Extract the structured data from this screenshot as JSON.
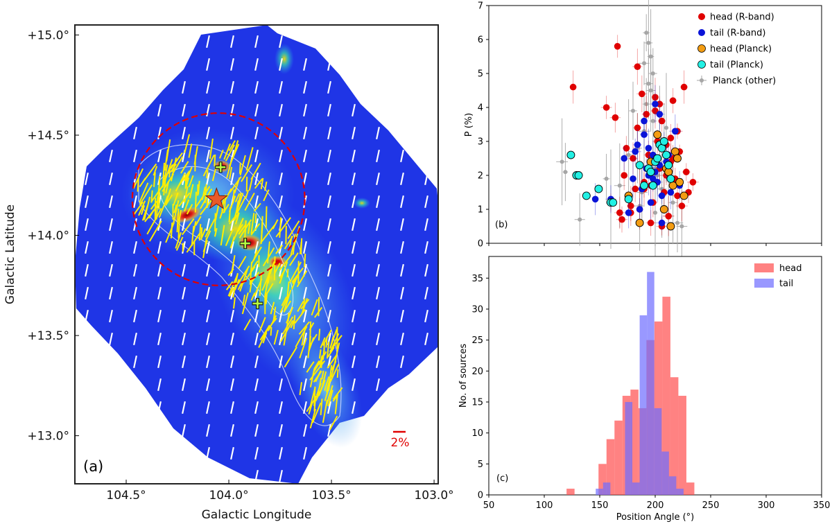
{
  "colors": {
    "head_rband": "#e00000",
    "tail_rband": "#0a14d8",
    "head_planck": "#f39c12",
    "tail_planck": "#22f0e4",
    "planck_other": "#a6a6a6",
    "hist_head": "#ff4d4d",
    "hist_tail": "#6e6cff",
    "map_bg": "#1f35e6",
    "vector_rband": "#ffee00",
    "vector_planck": "#ffffff",
    "scale_bar": "#e00000",
    "circle": "#e00000",
    "star": "#e85a2a"
  },
  "chart_data": [
    {
      "panel": "(a)",
      "type": "map",
      "xlabel": "Galactic Longitude",
      "ylabel": "Galactic Latitude",
      "xlim": [
        104.75,
        102.98
      ],
      "ylim": [
        12.76,
        15.05
      ],
      "x_ticks": [
        104.5,
        104.0,
        103.5,
        103.0
      ],
      "x_tick_labels": [
        "104.5°",
        "104.0°",
        "103.5°",
        "103.0°"
      ],
      "y_ticks": [
        15.0,
        14.5,
        14.0,
        13.5,
        13.0
      ],
      "y_tick_labels": [
        "+15.0°",
        "+14.5°",
        "+14.0°",
        "+13.5°",
        "+13.0°"
      ],
      "scale_bar_label": "2%",
      "star_position": [
        104.06,
        14.18
      ],
      "circle_center": [
        104.05,
        14.18
      ],
      "circle_radius_deg": 0.42,
      "plus_markers": [
        [
          104.04,
          14.34
        ],
        [
          103.92,
          13.96
        ],
        [
          103.86,
          13.66
        ]
      ],
      "planck_vector_angle_deg": 12,
      "rband_vector_angle_deg": 20
    },
    {
      "panel": "(b)",
      "type": "scatter",
      "xlabel": "",
      "ylabel": "P (%)",
      "xlim": [
        50,
        350
      ],
      "ylim": [
        0,
        7
      ],
      "y_ticks": [
        0,
        1,
        2,
        3,
        4,
        5,
        6,
        7
      ],
      "legend_position": "top-right",
      "series": [
        {
          "name": "head (R-band)",
          "color_key": "head_rband",
          "error_bars": true,
          "x": [
            126,
            156,
            166,
            170,
            172,
            176,
            178,
            180,
            182,
            184,
            186,
            188,
            190,
            192,
            194,
            196,
            198,
            200,
            202,
            204,
            206,
            208,
            210,
            212,
            214,
            216,
            218,
            220,
            222,
            224,
            226,
            228,
            230,
            234,
            160,
            164,
            168,
            174,
            186,
            196,
            206,
            214,
            220,
            184,
            200,
            210,
            190,
            204,
            216,
            178
          ],
          "y": [
            4.6,
            4.0,
            5.8,
            0.7,
            2.0,
            1.3,
            1.1,
            2.5,
            1.6,
            3.4,
            1.0,
            4.4,
            1.8,
            3.8,
            2.6,
            0.6,
            1.2,
            4.3,
            3.0,
            2.2,
            3.6,
            1.5,
            2.9,
            0.8,
            2.4,
            4.2,
            1.9,
            3.3,
            2.7,
            1.1,
            4.6,
            2.1,
            1.5,
            1.8,
            1.2,
            3.7,
            0.9,
            2.8,
            2.3,
            1.7,
            0.5,
            3.1,
            1.4,
            5.2,
            3.9,
            2.0,
            1.6,
            4.1,
            2.5,
            0.9
          ]
        },
        {
          "name": "tail (R-band)",
          "color_key": "tail_rband",
          "error_bars": true,
          "x": [
            146,
            160,
            172,
            180,
            184,
            188,
            190,
            192,
            194,
            196,
            198,
            200,
            202,
            204,
            206,
            208,
            210,
            214,
            218,
            222,
            186,
            194,
            200,
            206,
            212,
            190,
            198,
            204,
            182,
            176
          ],
          "y": [
            1.3,
            1.3,
            2.5,
            1.9,
            2.9,
            1.6,
            3.6,
            2.2,
            2.0,
            1.2,
            2.6,
            4.1,
            1.8,
            2.3,
            0.6,
            3.0,
            2.4,
            1.5,
            3.3,
            1.7,
            1.0,
            2.8,
            2.1,
            1.4,
            2.6,
            3.2,
            1.9,
            3.8,
            2.7,
            0.9
          ]
        },
        {
          "name": "head (Planck)",
          "color_key": "head_planck",
          "error_bars": false,
          "x": [
            176,
            186,
            196,
            202,
            206,
            210,
            214,
            216,
            218,
            220,
            222,
            226,
            208,
            212
          ],
          "y": [
            1.4,
            0.6,
            2.4,
            3.2,
            2.9,
            2.2,
            0.5,
            1.7,
            2.7,
            2.5,
            1.8,
            1.4,
            1.0,
            2.1
          ]
        },
        {
          "name": "tail (Planck)",
          "color_key": "tail_planck",
          "error_bars": false,
          "x": [
            124,
            129,
            131,
            138,
            149,
            160,
            162,
            176,
            186,
            190,
            194,
            196,
            200,
            204,
            206,
            208,
            210,
            212,
            214,
            198,
            202
          ],
          "y": [
            2.6,
            2.0,
            2.0,
            1.4,
            1.6,
            1.2,
            1.2,
            1.3,
            2.3,
            1.7,
            2.2,
            2.1,
            2.4,
            2.9,
            2.8,
            3.0,
            2.6,
            2.3,
            1.9,
            1.7,
            2.5
          ]
        },
        {
          "name": "Planck (other)",
          "color_key": "planck_other",
          "error_bars": true,
          "x": [
            116,
            119,
            132,
            156,
            160,
            168,
            176,
            180,
            184,
            188,
            190,
            192,
            194,
            196,
            198,
            200,
            202,
            204,
            206,
            208,
            212,
            216,
            220,
            224,
            194,
            196,
            198,
            192,
            190,
            200,
            186,
            210
          ],
          "y": [
            2.4,
            2.1,
            0.7,
            1.9,
            1.3,
            1.7,
            2.6,
            3.9,
            2.8,
            1.5,
            5.3,
            6.2,
            4.7,
            4.5,
            3.6,
            0.9,
            2.0,
            3.1,
            1.6,
            2.6,
            0.8,
            1.2,
            0.6,
            0.5,
            5.9,
            5.5,
            5.0,
            4.1,
            3.3,
            2.2,
            1.1,
            3.4
          ]
        }
      ]
    },
    {
      "panel": "(c)",
      "type": "bar",
      "xlabel": "Position Angle (°)",
      "ylabel": "No. of sources",
      "xlim": [
        50,
        350
      ],
      "ylim": [
        0,
        38.5
      ],
      "x_ticks": [
        50,
        100,
        150,
        200,
        250,
        300,
        350
      ],
      "y_ticks": [
        0,
        5,
        10,
        15,
        20,
        25,
        30,
        35
      ],
      "legend_position": "top-right",
      "series": [
        {
          "name": "head",
          "color_key": "hist_head",
          "bin_width": 7.2,
          "bin_starts": [
            120.1,
            148.9,
            156.1,
            163.3,
            170.5,
            177.7,
            184.9,
            192.1,
            199.3,
            206.5,
            213.7,
            220.9,
            228.1
          ],
          "counts": [
            1,
            5,
            9,
            12,
            16,
            17,
            14,
            25,
            28,
            32,
            19,
            16,
            2
          ]
        },
        {
          "name": "tail",
          "color_key": "hist_tail",
          "bin_width": 6.6,
          "bin_starts": [
            146.4,
            153.0,
            159.6,
            166.2,
            172.8,
            179.4,
            186.0,
            192.6,
            199.2,
            205.8,
            212.4,
            219.0
          ],
          "counts": [
            1,
            2,
            0,
            0,
            15,
            2,
            29,
            36,
            14,
            7,
            3,
            1
          ]
        }
      ]
    }
  ]
}
